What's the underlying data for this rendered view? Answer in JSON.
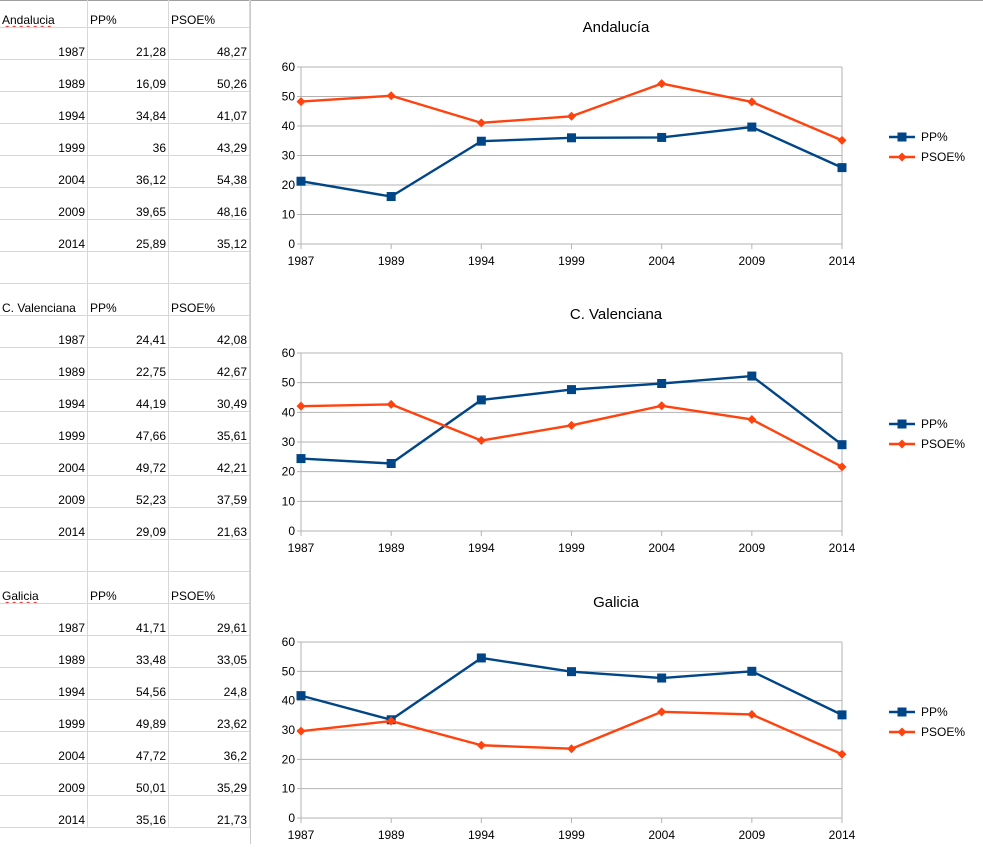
{
  "sheet": {
    "blocks": [
      {
        "region": "Andalucia",
        "spellcheck": true,
        "header_pp": "PP%",
        "header_psoe": "PSOE%",
        "rows": [
          {
            "year": "1987",
            "pp": "21,28",
            "psoe": "48,27"
          },
          {
            "year": "1989",
            "pp": "16,09",
            "psoe": "50,26"
          },
          {
            "year": "1994",
            "pp": "34,84",
            "psoe": "41,07"
          },
          {
            "year": "1999",
            "pp": "36",
            "psoe": "43,29"
          },
          {
            "year": "2004",
            "pp": "36,12",
            "psoe": "54,38"
          },
          {
            "year": "2009",
            "pp": "39,65",
            "psoe": "48,16"
          },
          {
            "year": "2014",
            "pp": "25,89",
            "psoe": "35,12"
          }
        ]
      },
      {
        "region": "C. Valenciana",
        "spellcheck": false,
        "header_pp": "PP%",
        "header_psoe": "PSOE%",
        "rows": [
          {
            "year": "1987",
            "pp": "24,41",
            "psoe": "42,08"
          },
          {
            "year": "1989",
            "pp": "22,75",
            "psoe": "42,67"
          },
          {
            "year": "1994",
            "pp": "44,19",
            "psoe": "30,49"
          },
          {
            "year": "1999",
            "pp": "47,66",
            "psoe": "35,61"
          },
          {
            "year": "2004",
            "pp": "49,72",
            "psoe": "42,21"
          },
          {
            "year": "2009",
            "pp": "52,23",
            "psoe": "37,59"
          },
          {
            "year": "2014",
            "pp": "29,09",
            "psoe": "21,63"
          }
        ]
      },
      {
        "region": "Galicia",
        "spellcheck": true,
        "header_pp": "PP%",
        "header_psoe": "PSOE%",
        "rows": [
          {
            "year": "1987",
            "pp": "41,71",
            "psoe": "29,61"
          },
          {
            "year": "1989",
            "pp": "33,48",
            "psoe": "33,05"
          },
          {
            "year": "1994",
            "pp": "54,56",
            "psoe": "24,8"
          },
          {
            "year": "1999",
            "pp": "49,89",
            "psoe": "23,62"
          },
          {
            "year": "2004",
            "pp": "47,72",
            "psoe": "36,2"
          },
          {
            "year": "2009",
            "pp": "50,01",
            "psoe": "35,29"
          },
          {
            "year": "2014",
            "pp": "35,16",
            "psoe": "21,73"
          }
        ]
      }
    ]
  },
  "colors": {
    "pp": "#004586",
    "psoe": "#ff420e",
    "grid": "#b3b3b3",
    "axis": "#b3b3b3"
  },
  "chart_data": [
    {
      "type": "line",
      "title": "Andalucía",
      "categories": [
        "1987",
        "1989",
        "1994",
        "1999",
        "2004",
        "2009",
        "2014"
      ],
      "ylim": [
        0,
        60
      ],
      "yticks": [
        0,
        10,
        20,
        30,
        40,
        50,
        60
      ],
      "grid": true,
      "legend": "right",
      "series": [
        {
          "name": "PP%",
          "marker": "square",
          "values": [
            21.28,
            16.09,
            34.84,
            36,
            36.12,
            39.65,
            25.89
          ]
        },
        {
          "name": "PSOE%",
          "marker": "diamond",
          "values": [
            48.27,
            50.26,
            41.07,
            43.29,
            54.38,
            48.16,
            35.12
          ]
        }
      ]
    },
    {
      "type": "line",
      "title": "C. Valenciana",
      "categories": [
        "1987",
        "1989",
        "1994",
        "1999",
        "2004",
        "2009",
        "2014"
      ],
      "ylim": [
        0,
        60
      ],
      "yticks": [
        0,
        10,
        20,
        30,
        40,
        50,
        60
      ],
      "grid": true,
      "legend": "right",
      "series": [
        {
          "name": "PP%",
          "marker": "square",
          "values": [
            24.41,
            22.75,
            44.19,
            47.66,
            49.72,
            52.23,
            29.09
          ]
        },
        {
          "name": "PSOE%",
          "marker": "diamond",
          "values": [
            42.08,
            42.67,
            30.49,
            35.61,
            42.21,
            37.59,
            21.63
          ]
        }
      ]
    },
    {
      "type": "line",
      "title": "Galicia",
      "categories": [
        "1987",
        "1989",
        "1994",
        "1999",
        "2004",
        "2009",
        "2014"
      ],
      "ylim": [
        0,
        60
      ],
      "yticks": [
        0,
        10,
        20,
        30,
        40,
        50,
        60
      ],
      "grid": true,
      "legend": "right",
      "series": [
        {
          "name": "PP%",
          "marker": "square",
          "values": [
            41.71,
            33.48,
            54.56,
            49.89,
            47.72,
            50.01,
            35.16
          ]
        },
        {
          "name": "PSOE%",
          "marker": "diamond",
          "values": [
            29.61,
            33.05,
            24.8,
            23.62,
            36.2,
            35.29,
            21.73
          ]
        }
      ]
    }
  ]
}
